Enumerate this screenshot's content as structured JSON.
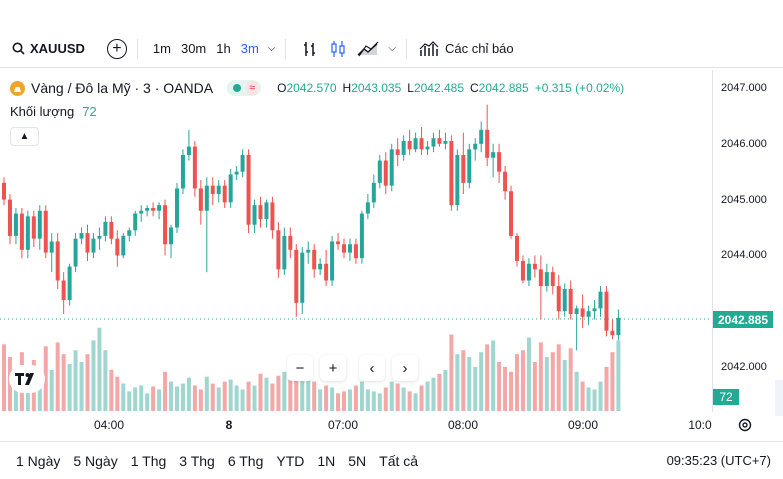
{
  "toolbar": {
    "symbol": "XAUUSD",
    "intervals": [
      "1m",
      "30m",
      "1h",
      "3m"
    ],
    "active_interval": "3m",
    "indicators_label": "Các chỉ báo",
    "icons": [
      "search-icon",
      "add-symbol-icon",
      "chevron-down-icon",
      "bar-style-icon",
      "candle-style-icon",
      "compare-icon",
      "indicators-icon"
    ]
  },
  "legend": {
    "title": "Vàng / Đô la Mỹ · 3 · OANDA",
    "open_label": "O",
    "open": "2042.570",
    "high_label": "H",
    "high": "2043.035",
    "low_label": "L",
    "low": "2042.485",
    "close_label": "C",
    "close": "2042.885",
    "change": "+0.315 (+0.02%)"
  },
  "volume_legend": {
    "label": "Khối lượng",
    "value": "72"
  },
  "x_axis": {
    "ticks": [
      {
        "label": "04:00",
        "bold": false
      },
      {
        "label": "8",
        "bold": true
      },
      {
        "label": "07:00",
        "bold": false
      },
      {
        "label": "08:00",
        "bold": false
      },
      {
        "label": "09:00",
        "bold": false
      },
      {
        "label": "10:0",
        "bold": false
      }
    ]
  },
  "price_scale": {
    "ticks": [
      "2047.000",
      "2046.000",
      "2045.000",
      "2044.000",
      "2042.000"
    ],
    "last_price": "2042.885",
    "last_volume": "72"
  },
  "bottom_bar": {
    "ranges": [
      "1 Ngày",
      "5 Ngày",
      "1 Thg",
      "3 Thg",
      "6 Thg",
      "YTD",
      "1N",
      "5N",
      "Tất cả"
    ],
    "clock": "09:35:23 (UTC+7)"
  },
  "colors": {
    "up": "#26a69a",
    "down": "#ef5350",
    "vol_up": "#9fd6cf",
    "vol_down": "#f3a7a7",
    "accent": "#2962ff"
  },
  "chart_data": {
    "type": "candlestick",
    "ylim": [
      2041.2,
      2047.3
    ],
    "candles": [
      {
        "o": 2045.3,
        "h": 2045.4,
        "l": 2044.9,
        "c": 2045.0,
        "v": 68
      },
      {
        "o": 2045.0,
        "h": 2045.1,
        "l": 2044.2,
        "c": 2044.35,
        "v": 55
      },
      {
        "o": 2044.35,
        "h": 2044.85,
        "l": 2044.2,
        "c": 2044.75,
        "v": 40
      },
      {
        "o": 2044.75,
        "h": 2044.85,
        "l": 2043.95,
        "c": 2044.1,
        "v": 60
      },
      {
        "o": 2044.1,
        "h": 2044.8,
        "l": 2043.95,
        "c": 2044.7,
        "v": 45
      },
      {
        "o": 2044.7,
        "h": 2044.8,
        "l": 2044.15,
        "c": 2044.3,
        "v": 52
      },
      {
        "o": 2044.3,
        "h": 2044.9,
        "l": 2044.1,
        "c": 2044.8,
        "v": 38
      },
      {
        "o": 2044.8,
        "h": 2044.9,
        "l": 2043.95,
        "c": 2044.05,
        "v": 66
      },
      {
        "o": 2044.05,
        "h": 2044.4,
        "l": 2043.7,
        "c": 2044.25,
        "v": 42
      },
      {
        "o": 2044.25,
        "h": 2044.4,
        "l": 2043.4,
        "c": 2043.55,
        "v": 70
      },
      {
        "o": 2043.55,
        "h": 2043.7,
        "l": 2042.95,
        "c": 2043.2,
        "v": 58
      },
      {
        "o": 2043.2,
        "h": 2043.85,
        "l": 2043.1,
        "c": 2043.8,
        "v": 48
      },
      {
        "o": 2043.8,
        "h": 2044.4,
        "l": 2043.7,
        "c": 2044.3,
        "v": 62
      },
      {
        "o": 2044.3,
        "h": 2044.5,
        "l": 2044.2,
        "c": 2044.4,
        "v": 50
      },
      {
        "o": 2044.4,
        "h": 2044.55,
        "l": 2043.9,
        "c": 2044.05,
        "v": 58
      },
      {
        "o": 2044.05,
        "h": 2044.4,
        "l": 2043.95,
        "c": 2044.3,
        "v": 72
      },
      {
        "o": 2044.3,
        "h": 2044.5,
        "l": 2044.1,
        "c": 2044.35,
        "v": 85
      },
      {
        "o": 2044.35,
        "h": 2044.7,
        "l": 2044.25,
        "c": 2044.6,
        "v": 62
      },
      {
        "o": 2044.6,
        "h": 2044.7,
        "l": 2044.2,
        "c": 2044.3,
        "v": 42
      },
      {
        "o": 2044.3,
        "h": 2044.45,
        "l": 2043.8,
        "c": 2044.0,
        "v": 35
      },
      {
        "o": 2044.0,
        "h": 2044.4,
        "l": 2043.95,
        "c": 2044.35,
        "v": 28
      },
      {
        "o": 2044.35,
        "h": 2044.5,
        "l": 2044.25,
        "c": 2044.45,
        "v": 20
      },
      {
        "o": 2044.45,
        "h": 2044.8,
        "l": 2044.35,
        "c": 2044.75,
        "v": 24
      },
      {
        "o": 2044.75,
        "h": 2044.9,
        "l": 2044.6,
        "c": 2044.8,
        "v": 26
      },
      {
        "o": 2044.8,
        "h": 2044.9,
        "l": 2044.7,
        "c": 2044.85,
        "v": 18
      },
      {
        "o": 2044.85,
        "h": 2044.95,
        "l": 2044.7,
        "c": 2044.8,
        "v": 25
      },
      {
        "o": 2044.8,
        "h": 2044.95,
        "l": 2044.65,
        "c": 2044.9,
        "v": 22
      },
      {
        "o": 2044.9,
        "h": 2045.0,
        "l": 2044.0,
        "c": 2044.2,
        "v": 40
      },
      {
        "o": 2044.2,
        "h": 2044.55,
        "l": 2043.95,
        "c": 2044.5,
        "v": 30
      },
      {
        "o": 2044.5,
        "h": 2045.3,
        "l": 2044.4,
        "c": 2045.2,
        "v": 25
      },
      {
        "o": 2045.2,
        "h": 2045.9,
        "l": 2045.1,
        "c": 2045.8,
        "v": 28
      },
      {
        "o": 2045.8,
        "h": 2046.25,
        "l": 2045.7,
        "c": 2045.95,
        "v": 34
      },
      {
        "o": 2045.95,
        "h": 2046.05,
        "l": 2045.05,
        "c": 2045.2,
        "v": 26
      },
      {
        "o": 2045.2,
        "h": 2045.35,
        "l": 2044.55,
        "c": 2044.8,
        "v": 22
      },
      {
        "o": 2044.8,
        "h": 2045.4,
        "l": 2043.7,
        "c": 2045.25,
        "v": 35
      },
      {
        "o": 2045.25,
        "h": 2045.4,
        "l": 2044.9,
        "c": 2045.1,
        "v": 28
      },
      {
        "o": 2045.1,
        "h": 2045.35,
        "l": 2044.95,
        "c": 2045.25,
        "v": 24
      },
      {
        "o": 2045.25,
        "h": 2045.35,
        "l": 2044.85,
        "c": 2044.95,
        "v": 30
      },
      {
        "o": 2044.95,
        "h": 2045.55,
        "l": 2044.85,
        "c": 2045.45,
        "v": 32
      },
      {
        "o": 2045.45,
        "h": 2045.6,
        "l": 2045.35,
        "c": 2045.5,
        "v": 26
      },
      {
        "o": 2045.5,
        "h": 2045.9,
        "l": 2045.4,
        "c": 2045.8,
        "v": 22
      },
      {
        "o": 2045.8,
        "h": 2045.9,
        "l": 2044.4,
        "c": 2044.55,
        "v": 30
      },
      {
        "o": 2044.55,
        "h": 2045.0,
        "l": 2044.4,
        "c": 2044.9,
        "v": 26
      },
      {
        "o": 2044.9,
        "h": 2045.05,
        "l": 2044.5,
        "c": 2044.65,
        "v": 38
      },
      {
        "o": 2044.65,
        "h": 2045.0,
        "l": 2044.5,
        "c": 2044.95,
        "v": 34
      },
      {
        "o": 2044.95,
        "h": 2045.05,
        "l": 2044.3,
        "c": 2044.45,
        "v": 28
      },
      {
        "o": 2044.45,
        "h": 2044.6,
        "l": 2043.6,
        "c": 2043.75,
        "v": 36
      },
      {
        "o": 2043.75,
        "h": 2044.5,
        "l": 2043.65,
        "c": 2044.35,
        "v": 40
      },
      {
        "o": 2044.35,
        "h": 2044.5,
        "l": 2043.95,
        "c": 2044.1,
        "v": 32
      },
      {
        "o": 2044.1,
        "h": 2044.2,
        "l": 2042.9,
        "c": 2043.15,
        "v": 48
      },
      {
        "o": 2043.15,
        "h": 2044.15,
        "l": 2042.95,
        "c": 2044.05,
        "v": 44
      },
      {
        "o": 2044.05,
        "h": 2044.25,
        "l": 2043.85,
        "c": 2044.1,
        "v": 38
      },
      {
        "o": 2044.1,
        "h": 2044.2,
        "l": 2043.6,
        "c": 2043.75,
        "v": 30
      },
      {
        "o": 2043.75,
        "h": 2043.95,
        "l": 2043.65,
        "c": 2043.85,
        "v": 22
      },
      {
        "o": 2043.85,
        "h": 2044.1,
        "l": 2043.45,
        "c": 2043.55,
        "v": 26
      },
      {
        "o": 2043.55,
        "h": 2044.35,
        "l": 2043.45,
        "c": 2044.25,
        "v": 24
      },
      {
        "o": 2044.25,
        "h": 2044.4,
        "l": 2044.1,
        "c": 2044.2,
        "v": 18
      },
      {
        "o": 2044.2,
        "h": 2044.3,
        "l": 2043.95,
        "c": 2044.05,
        "v": 20
      },
      {
        "o": 2044.05,
        "h": 2044.3,
        "l": 2043.9,
        "c": 2044.2,
        "v": 22
      },
      {
        "o": 2044.2,
        "h": 2044.3,
        "l": 2043.85,
        "c": 2043.95,
        "v": 26
      },
      {
        "o": 2043.95,
        "h": 2044.8,
        "l": 2043.85,
        "c": 2044.75,
        "v": 30
      },
      {
        "o": 2044.75,
        "h": 2045.1,
        "l": 2044.65,
        "c": 2044.95,
        "v": 22
      },
      {
        "o": 2044.95,
        "h": 2045.45,
        "l": 2044.85,
        "c": 2045.3,
        "v": 20
      },
      {
        "o": 2045.3,
        "h": 2045.8,
        "l": 2045.2,
        "c": 2045.7,
        "v": 18
      },
      {
        "o": 2045.7,
        "h": 2045.85,
        "l": 2045.1,
        "c": 2045.25,
        "v": 24
      },
      {
        "o": 2045.25,
        "h": 2046.0,
        "l": 2045.15,
        "c": 2045.9,
        "v": 30
      },
      {
        "o": 2045.9,
        "h": 2046.1,
        "l": 2045.6,
        "c": 2045.8,
        "v": 28
      },
      {
        "o": 2045.8,
        "h": 2046.15,
        "l": 2045.7,
        "c": 2046.05,
        "v": 24
      },
      {
        "o": 2046.05,
        "h": 2046.25,
        "l": 2045.8,
        "c": 2045.9,
        "v": 20
      },
      {
        "o": 2045.9,
        "h": 2046.2,
        "l": 2045.85,
        "c": 2046.1,
        "v": 18
      },
      {
        "o": 2046.1,
        "h": 2046.3,
        "l": 2045.8,
        "c": 2045.9,
        "v": 26
      },
      {
        "o": 2045.9,
        "h": 2046.05,
        "l": 2045.8,
        "c": 2045.95,
        "v": 30
      },
      {
        "o": 2045.95,
        "h": 2046.2,
        "l": 2045.85,
        "c": 2046.1,
        "v": 34
      },
      {
        "o": 2046.1,
        "h": 2046.25,
        "l": 2045.95,
        "c": 2046.0,
        "v": 38
      },
      {
        "o": 2046.0,
        "h": 2046.2,
        "l": 2045.9,
        "c": 2046.05,
        "v": 42
      },
      {
        "o": 2046.05,
        "h": 2046.15,
        "l": 2044.8,
        "c": 2044.9,
        "v": 78
      },
      {
        "o": 2044.9,
        "h": 2045.9,
        "l": 2044.8,
        "c": 2045.8,
        "v": 58
      },
      {
        "o": 2045.8,
        "h": 2046.2,
        "l": 2045.1,
        "c": 2045.3,
        "v": 62
      },
      {
        "o": 2045.3,
        "h": 2046.0,
        "l": 2045.2,
        "c": 2045.9,
        "v": 55
      },
      {
        "o": 2045.9,
        "h": 2046.1,
        "l": 2045.7,
        "c": 2046.0,
        "v": 45
      },
      {
        "o": 2046.0,
        "h": 2046.4,
        "l": 2045.85,
        "c": 2046.25,
        "v": 60
      },
      {
        "o": 2046.25,
        "h": 2046.7,
        "l": 2045.6,
        "c": 2045.75,
        "v": 68
      },
      {
        "o": 2045.75,
        "h": 2046.0,
        "l": 2045.4,
        "c": 2045.85,
        "v": 72
      },
      {
        "o": 2045.85,
        "h": 2046.0,
        "l": 2045.3,
        "c": 2045.5,
        "v": 50
      },
      {
        "o": 2045.5,
        "h": 2045.6,
        "l": 2045.0,
        "c": 2045.15,
        "v": 45
      },
      {
        "o": 2045.15,
        "h": 2045.25,
        "l": 2044.3,
        "c": 2044.35,
        "v": 40
      },
      {
        "o": 2044.35,
        "h": 2044.4,
        "l": 2043.8,
        "c": 2043.9,
        "v": 58
      },
      {
        "o": 2043.9,
        "h": 2044.0,
        "l": 2043.5,
        "c": 2043.55,
        "v": 62
      },
      {
        "o": 2043.55,
        "h": 2043.95,
        "l": 2043.45,
        "c": 2043.85,
        "v": 75
      },
      {
        "o": 2043.85,
        "h": 2044.0,
        "l": 2043.6,
        "c": 2043.75,
        "v": 50
      },
      {
        "o": 2043.75,
        "h": 2044.0,
        "l": 2042.85,
        "c": 2043.45,
        "v": 70
      },
      {
        "o": 2043.45,
        "h": 2043.85,
        "l": 2043.35,
        "c": 2043.7,
        "v": 55
      },
      {
        "o": 2043.7,
        "h": 2043.8,
        "l": 2043.3,
        "c": 2043.45,
        "v": 60
      },
      {
        "o": 2043.45,
        "h": 2043.65,
        "l": 2042.85,
        "c": 2043.0,
        "v": 68
      },
      {
        "o": 2043.0,
        "h": 2043.5,
        "l": 2042.9,
        "c": 2043.4,
        "v": 52
      },
      {
        "o": 2043.4,
        "h": 2043.55,
        "l": 2042.85,
        "c": 2042.95,
        "v": 64
      },
      {
        "o": 2042.95,
        "h": 2043.1,
        "l": 2042.3,
        "c": 2043.05,
        "v": 40
      },
      {
        "o": 2043.05,
        "h": 2043.3,
        "l": 2042.7,
        "c": 2042.9,
        "v": 30
      },
      {
        "o": 2042.9,
        "h": 2043.1,
        "l": 2042.75,
        "c": 2043.0,
        "v": 24
      },
      {
        "o": 2043.0,
        "h": 2043.2,
        "l": 2042.85,
        "c": 2043.05,
        "v": 22
      },
      {
        "o": 2043.05,
        "h": 2043.45,
        "l": 2042.9,
        "c": 2043.35,
        "v": 30
      },
      {
        "o": 2043.35,
        "h": 2043.45,
        "l": 2042.55,
        "c": 2042.65,
        "v": 45
      },
      {
        "o": 2042.65,
        "h": 2042.85,
        "l": 2042.5,
        "c": 2042.57,
        "v": 60
      },
      {
        "o": 2042.57,
        "h": 2043.03,
        "l": 2042.48,
        "c": 2042.88,
        "v": 72
      }
    ]
  }
}
